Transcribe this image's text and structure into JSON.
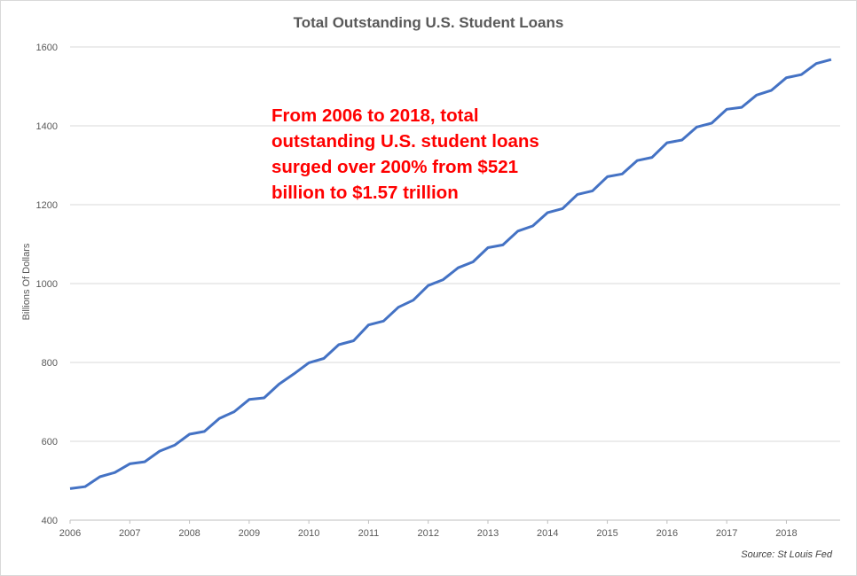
{
  "chart_data": {
    "type": "line",
    "title": "Total Outstanding U.S. Student Loans",
    "xlabel": "",
    "ylabel": "Billions Of Dollars",
    "xlim": [
      2006.0,
      2018.9
    ],
    "ylim": [
      400,
      1600
    ],
    "x_ticks": [
      "2006",
      "2007",
      "2008",
      "2009",
      "2010",
      "2011",
      "2012",
      "2013",
      "2014",
      "2015",
      "2016",
      "2017",
      "2018"
    ],
    "y_ticks": [
      "400",
      "600",
      "800",
      "1000",
      "1200",
      "1400",
      "1600"
    ],
    "grid": "horizontal",
    "line_color": "#4472c4",
    "annotation": "From 2006 to 2018, total outstanding U.S. student loans surged over 200% from $521 billion to $1.57 trillion",
    "annotation_color": "#ff0000",
    "source": "Source: St Louis Fed",
    "series": [
      {
        "x": [
          2006.0,
          2006.25,
          2006.5,
          2006.75,
          2007.0,
          2007.25,
          2007.5,
          2007.75,
          2008.0,
          2008.25,
          2008.5,
          2008.75,
          2009.0,
          2009.25,
          2009.5,
          2009.75,
          2010.0,
          2010.25,
          2010.5,
          2010.75,
          2011.0,
          2011.25,
          2011.5,
          2011.75,
          2012.0,
          2012.25,
          2012.5,
          2012.75,
          2013.0,
          2013.25,
          2013.5,
          2013.75,
          2014.0,
          2014.25,
          2014.5,
          2014.75,
          2015.0,
          2015.25,
          2015.5,
          2015.75,
          2016.0,
          2016.25,
          2016.5,
          2016.75,
          2017.0,
          2017.25,
          2017.5,
          2017.75,
          2018.0,
          2018.25,
          2018.5,
          2018.75
        ],
        "values": [
          480,
          485,
          510,
          521,
          543,
          548,
          575,
          590,
          618,
          625,
          658,
          675,
          706,
          710,
          745,
          771,
          799,
          810,
          845,
          855,
          895,
          905,
          940,
          958,
          995,
          1010,
          1040,
          1055,
          1091,
          1098,
          1133,
          1146,
          1180,
          1190,
          1226,
          1235,
          1271,
          1278,
          1312,
          1320,
          1357,
          1364,
          1397,
          1407,
          1442,
          1447,
          1478,
          1490,
          1522,
          1530,
          1558,
          1568
        ]
      }
    ]
  }
}
